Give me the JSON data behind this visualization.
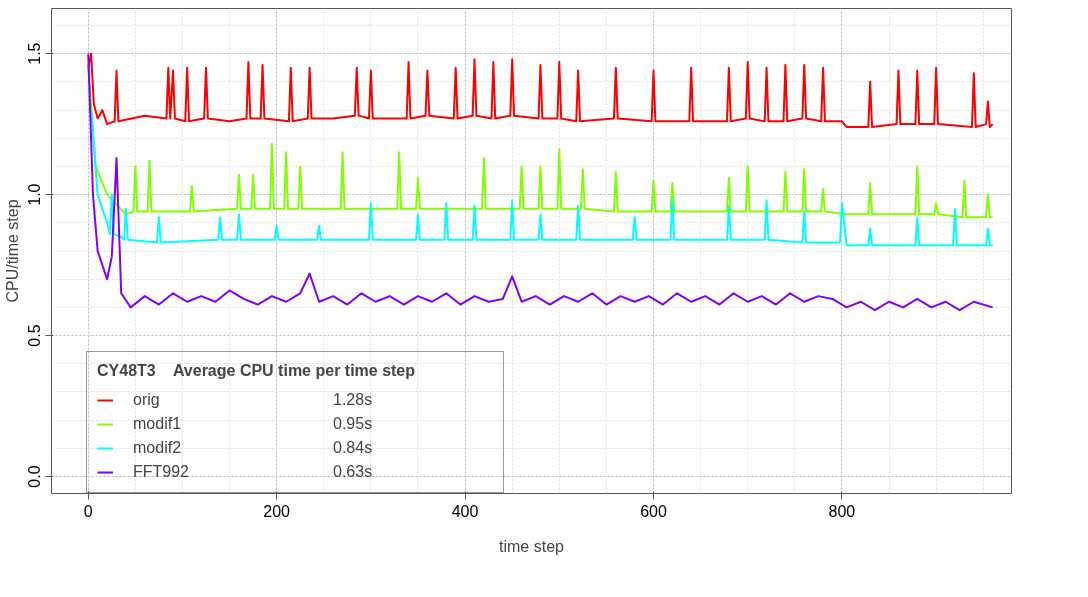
{
  "chart_data": {
    "type": "line",
    "xlabel": "time step",
    "ylabel": "CPU/time step",
    "legend_title": "CY48T3    Average CPU time per time step",
    "annotations": [
      "1.28s",
      "0.95s",
      "0.84s",
      "0.63s"
    ],
    "xlim": [
      -39,
      980
    ],
    "ylim": [
      -0.06,
      1.66
    ],
    "xticks": [
      0,
      200,
      400,
      600,
      800
    ],
    "yticks": [
      {
        "value": 0,
        "label": "0.0"
      },
      {
        "value": 0.5,
        "label": "0.5"
      },
      {
        "value": 1,
        "label": "1.0"
      },
      {
        "value": 1.5,
        "label": "1.5"
      }
    ],
    "grid": true,
    "legend": "bottom left",
    "marker": "none",
    "line_style": "solid",
    "series": [
      {
        "name": "orig",
        "color": "#ff0000",
        "x": [
          0,
          3,
          6,
          10,
          15,
          20,
          28,
          30,
          32,
          60,
          83,
          85,
          87,
          90,
          92,
          103,
          105,
          107,
          123,
          125,
          127,
          150,
          168,
          170,
          172,
          183,
          185,
          187,
          213,
          215,
          217,
          233,
          235,
          237,
          260,
          283,
          285,
          287,
          298,
          300,
          302,
          338,
          340,
          342,
          358,
          360,
          362,
          388,
          390,
          392,
          408,
          410,
          412,
          428,
          430,
          432,
          448,
          450,
          452,
          478,
          480,
          482,
          498,
          500,
          502,
          518,
          520,
          522,
          558,
          560,
          562,
          598,
          600,
          602,
          638,
          640,
          642,
          678,
          680,
          682,
          698,
          700,
          702,
          718,
          720,
          722,
          738,
          740,
          742,
          758,
          760,
          762,
          778,
          780,
          782,
          800,
          805,
          828,
          830,
          832,
          858,
          860,
          862,
          878,
          880,
          882,
          898,
          900,
          902,
          938,
          940,
          942,
          953,
          955,
          957,
          960
        ],
        "values": [
          1.45,
          1.5,
          1.32,
          1.27,
          1.3,
          1.25,
          1.26,
          1.44,
          1.26,
          1.28,
          1.27,
          1.45,
          1.27,
          1.44,
          1.27,
          1.26,
          1.45,
          1.26,
          1.27,
          1.45,
          1.27,
          1.26,
          1.27,
          1.47,
          1.27,
          1.27,
          1.46,
          1.27,
          1.26,
          1.45,
          1.26,
          1.27,
          1.45,
          1.27,
          1.27,
          1.28,
          1.45,
          1.28,
          1.27,
          1.44,
          1.27,
          1.27,
          1.47,
          1.27,
          1.28,
          1.44,
          1.28,
          1.27,
          1.45,
          1.27,
          1.28,
          1.48,
          1.28,
          1.27,
          1.47,
          1.27,
          1.28,
          1.48,
          1.28,
          1.27,
          1.46,
          1.27,
          1.27,
          1.47,
          1.27,
          1.26,
          1.44,
          1.26,
          1.27,
          1.45,
          1.27,
          1.26,
          1.44,
          1.26,
          1.26,
          1.45,
          1.26,
          1.26,
          1.45,
          1.26,
          1.27,
          1.47,
          1.27,
          1.26,
          1.45,
          1.26,
          1.26,
          1.46,
          1.26,
          1.27,
          1.46,
          1.27,
          1.26,
          1.45,
          1.26,
          1.26,
          1.24,
          1.24,
          1.4,
          1.24,
          1.25,
          1.44,
          1.25,
          1.25,
          1.44,
          1.25,
          1.25,
          1.45,
          1.25,
          1.24,
          1.43,
          1.24,
          1.25,
          1.33,
          1.24,
          1.25
        ]
      },
      {
        "name": "modif1",
        "color": "#80ff00",
        "x": [
          0,
          8,
          20,
          40,
          48,
          50,
          52,
          63,
          65,
          67,
          108,
          110,
          112,
          158,
          160,
          162,
          173,
          175,
          177,
          193,
          195,
          197,
          208,
          210,
          212,
          223,
          225,
          227,
          268,
          270,
          272,
          328,
          330,
          332,
          348,
          350,
          352,
          418,
          420,
          422,
          458,
          460,
          462,
          478,
          480,
          482,
          498,
          500,
          502,
          523,
          525,
          527,
          558,
          560,
          562,
          598,
          600,
          602,
          618,
          620,
          622,
          678,
          680,
          682,
          698,
          700,
          702,
          738,
          740,
          742,
          758,
          760,
          762,
          778,
          780,
          782,
          805,
          828,
          830,
          832,
          878,
          880,
          882,
          898,
          900,
          902,
          928,
          930,
          932,
          953,
          955,
          957,
          960
        ],
        "values": [
          1.45,
          1.1,
          1.0,
          0.93,
          0.94,
          1.1,
          0.94,
          0.94,
          1.12,
          0.94,
          0.94,
          1.03,
          0.94,
          0.95,
          1.07,
          0.95,
          0.95,
          1.07,
          0.95,
          0.95,
          1.18,
          0.95,
          0.95,
          1.15,
          0.95,
          0.95,
          1.1,
          0.95,
          0.95,
          1.15,
          0.95,
          0.95,
          1.15,
          0.95,
          0.95,
          1.06,
          0.95,
          0.95,
          1.13,
          0.95,
          0.95,
          1.1,
          0.95,
          0.95,
          1.1,
          0.95,
          0.95,
          1.16,
          0.95,
          0.95,
          1.09,
          0.95,
          0.94,
          1.08,
          0.94,
          0.94,
          1.05,
          0.94,
          0.94,
          1.04,
          0.94,
          0.94,
          1.06,
          0.94,
          0.94,
          1.1,
          0.94,
          0.94,
          1.08,
          0.94,
          0.94,
          1.09,
          0.94,
          0.94,
          1.02,
          0.94,
          0.93,
          0.93,
          1.04,
          0.93,
          0.93,
          1.1,
          0.93,
          0.93,
          0.97,
          0.93,
          0.92,
          1.05,
          0.92,
          0.92,
          1.0,
          0.92,
          0.92
        ]
      },
      {
        "name": "modif2",
        "color": "#00ffff",
        "x": [
          3,
          10,
          20,
          23,
          25,
          27,
          35,
          38,
          40,
          42,
          73,
          75,
          77,
          138,
          140,
          142,
          158,
          160,
          162,
          198,
          200,
          202,
          243,
          245,
          247,
          298,
          300,
          302,
          348,
          350,
          352,
          378,
          380,
          382,
          408,
          410,
          412,
          448,
          450,
          452,
          478,
          480,
          482,
          518,
          520,
          522,
          578,
          580,
          582,
          618,
          620,
          622,
          678,
          680,
          682,
          718,
          720,
          722,
          758,
          760,
          762,
          798,
          800,
          805,
          828,
          830,
          832,
          878,
          880,
          882,
          918,
          920,
          922,
          953,
          955,
          957,
          960
        ],
        "values": [
          1.3,
          1.0,
          0.9,
          0.86,
          1.0,
          0.86,
          0.85,
          0.84,
          0.95,
          0.84,
          0.83,
          0.92,
          0.83,
          0.84,
          0.92,
          0.84,
          0.84,
          0.93,
          0.84,
          0.84,
          0.89,
          0.84,
          0.84,
          0.89,
          0.84,
          0.84,
          0.97,
          0.84,
          0.84,
          0.93,
          0.84,
          0.84,
          0.97,
          0.84,
          0.84,
          0.96,
          0.84,
          0.84,
          0.98,
          0.84,
          0.84,
          0.93,
          0.84,
          0.84,
          0.96,
          0.84,
          0.84,
          0.92,
          0.84,
          0.84,
          0.98,
          0.84,
          0.84,
          0.96,
          0.84,
          0.84,
          0.98,
          0.84,
          0.83,
          0.94,
          0.83,
          0.83,
          0.97,
          0.82,
          0.82,
          0.88,
          0.82,
          0.82,
          0.92,
          0.82,
          0.82,
          0.95,
          0.82,
          0.82,
          0.88,
          0.82,
          0.82
        ]
      },
      {
        "name": "FFT992",
        "color": "#8000ff",
        "x": [
          0,
          5,
          10,
          20,
          25,
          30,
          35,
          45,
          60,
          75,
          90,
          105,
          120,
          135,
          150,
          165,
          180,
          195,
          210,
          225,
          235,
          245,
          260,
          275,
          290,
          305,
          320,
          335,
          350,
          365,
          380,
          395,
          410,
          425,
          440,
          450,
          460,
          475,
          490,
          505,
          520,
          535,
          550,
          565,
          580,
          595,
          610,
          625,
          640,
          655,
          670,
          685,
          700,
          715,
          730,
          745,
          760,
          775,
          790,
          805,
          820,
          835,
          850,
          865,
          880,
          895,
          910,
          925,
          940,
          960
        ],
        "values": [
          1.5,
          1.0,
          0.8,
          0.7,
          0.78,
          1.13,
          0.65,
          0.6,
          0.64,
          0.61,
          0.65,
          0.62,
          0.64,
          0.62,
          0.66,
          0.63,
          0.61,
          0.64,
          0.62,
          0.65,
          0.72,
          0.62,
          0.64,
          0.61,
          0.65,
          0.62,
          0.64,
          0.61,
          0.64,
          0.62,
          0.65,
          0.61,
          0.64,
          0.62,
          0.63,
          0.71,
          0.62,
          0.64,
          0.61,
          0.64,
          0.62,
          0.65,
          0.61,
          0.64,
          0.62,
          0.64,
          0.61,
          0.65,
          0.62,
          0.64,
          0.61,
          0.65,
          0.62,
          0.64,
          0.61,
          0.65,
          0.62,
          0.64,
          0.63,
          0.6,
          0.62,
          0.59,
          0.62,
          0.6,
          0.63,
          0.6,
          0.62,
          0.59,
          0.62,
          0.6
        ]
      }
    ]
  }
}
